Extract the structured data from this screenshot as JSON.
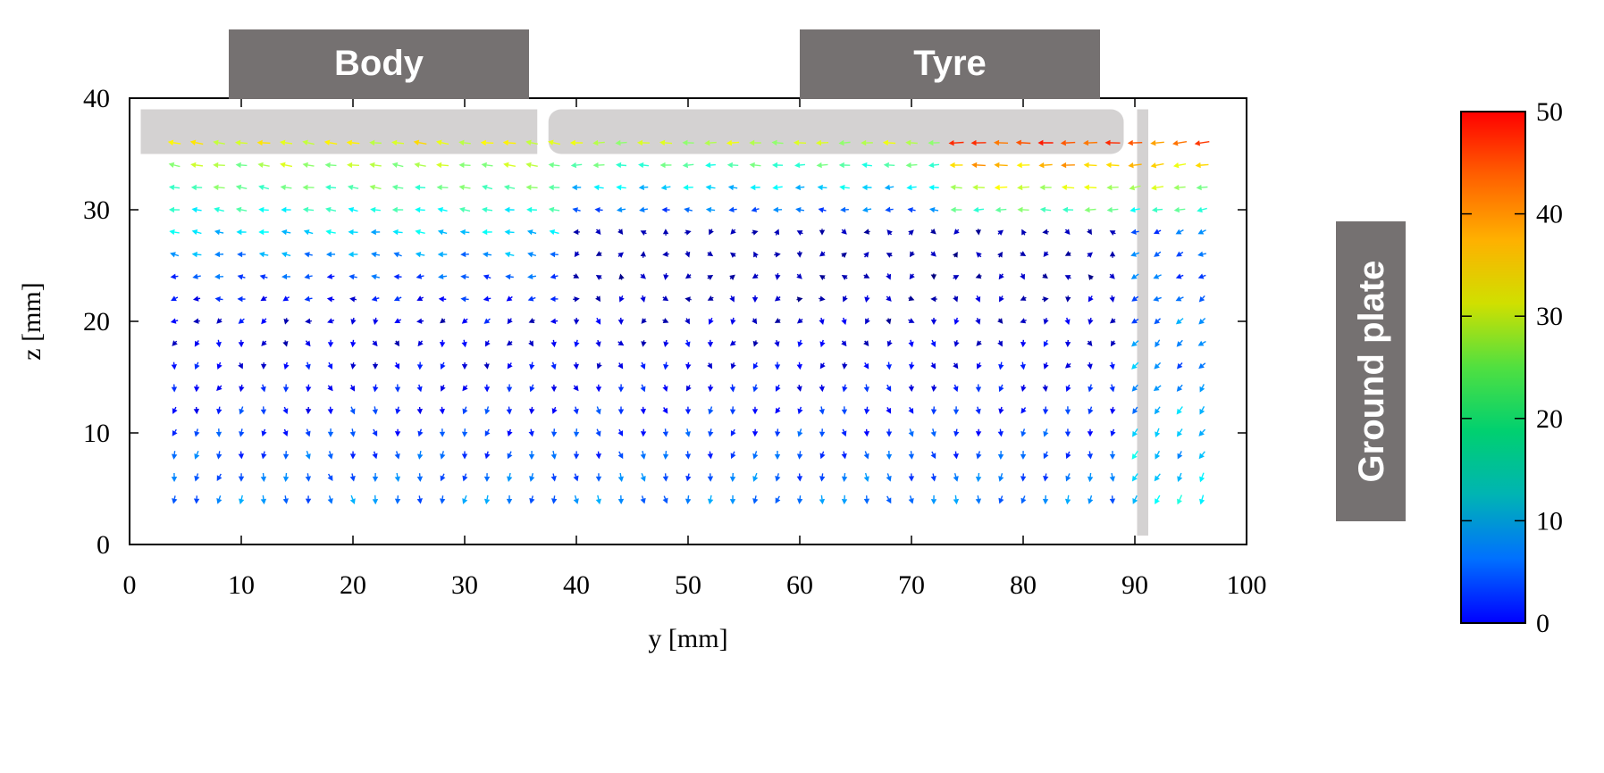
{
  "chart_data": {
    "type": "quiver",
    "xlabel": "y [mm]",
    "ylabel": "z [mm]",
    "xlim": [
      0,
      100
    ],
    "ylim": [
      0,
      40
    ],
    "x_ticks": [
      0,
      10,
      20,
      30,
      40,
      50,
      60,
      70,
      80,
      90,
      100
    ],
    "y_ticks": [
      0,
      10,
      20,
      30,
      40
    ],
    "colorbar": {
      "range": [
        0,
        50
      ],
      "ticks": [
        0,
        10,
        20,
        30,
        40,
        50
      ],
      "colormap": "jet"
    },
    "annotations": {
      "body": "Body",
      "tyre": "Tyre",
      "ground_plate": "Ground plate"
    },
    "vector_grid": {
      "x_start": 4,
      "x_step": 2,
      "x_count": 47,
      "z_start": 4,
      "z_step": 2,
      "z_count": 17
    },
    "surfaces": {
      "body": {
        "y_range": [
          1,
          36.5
        ],
        "z_range": [
          35,
          39
        ]
      },
      "tyre": {
        "y_range": [
          37.5,
          89
        ],
        "z_range": [
          35,
          39
        ]
      },
      "ground_plate": {
        "y_range": [
          90.2,
          91.2
        ],
        "z_range": [
          0.8,
          39
        ]
      }
    },
    "colors": {
      "surface_fill": "#d4d2d2",
      "label_box_fill": "#757171",
      "label_text": "#ffffff",
      "axis": "#000000"
    }
  }
}
